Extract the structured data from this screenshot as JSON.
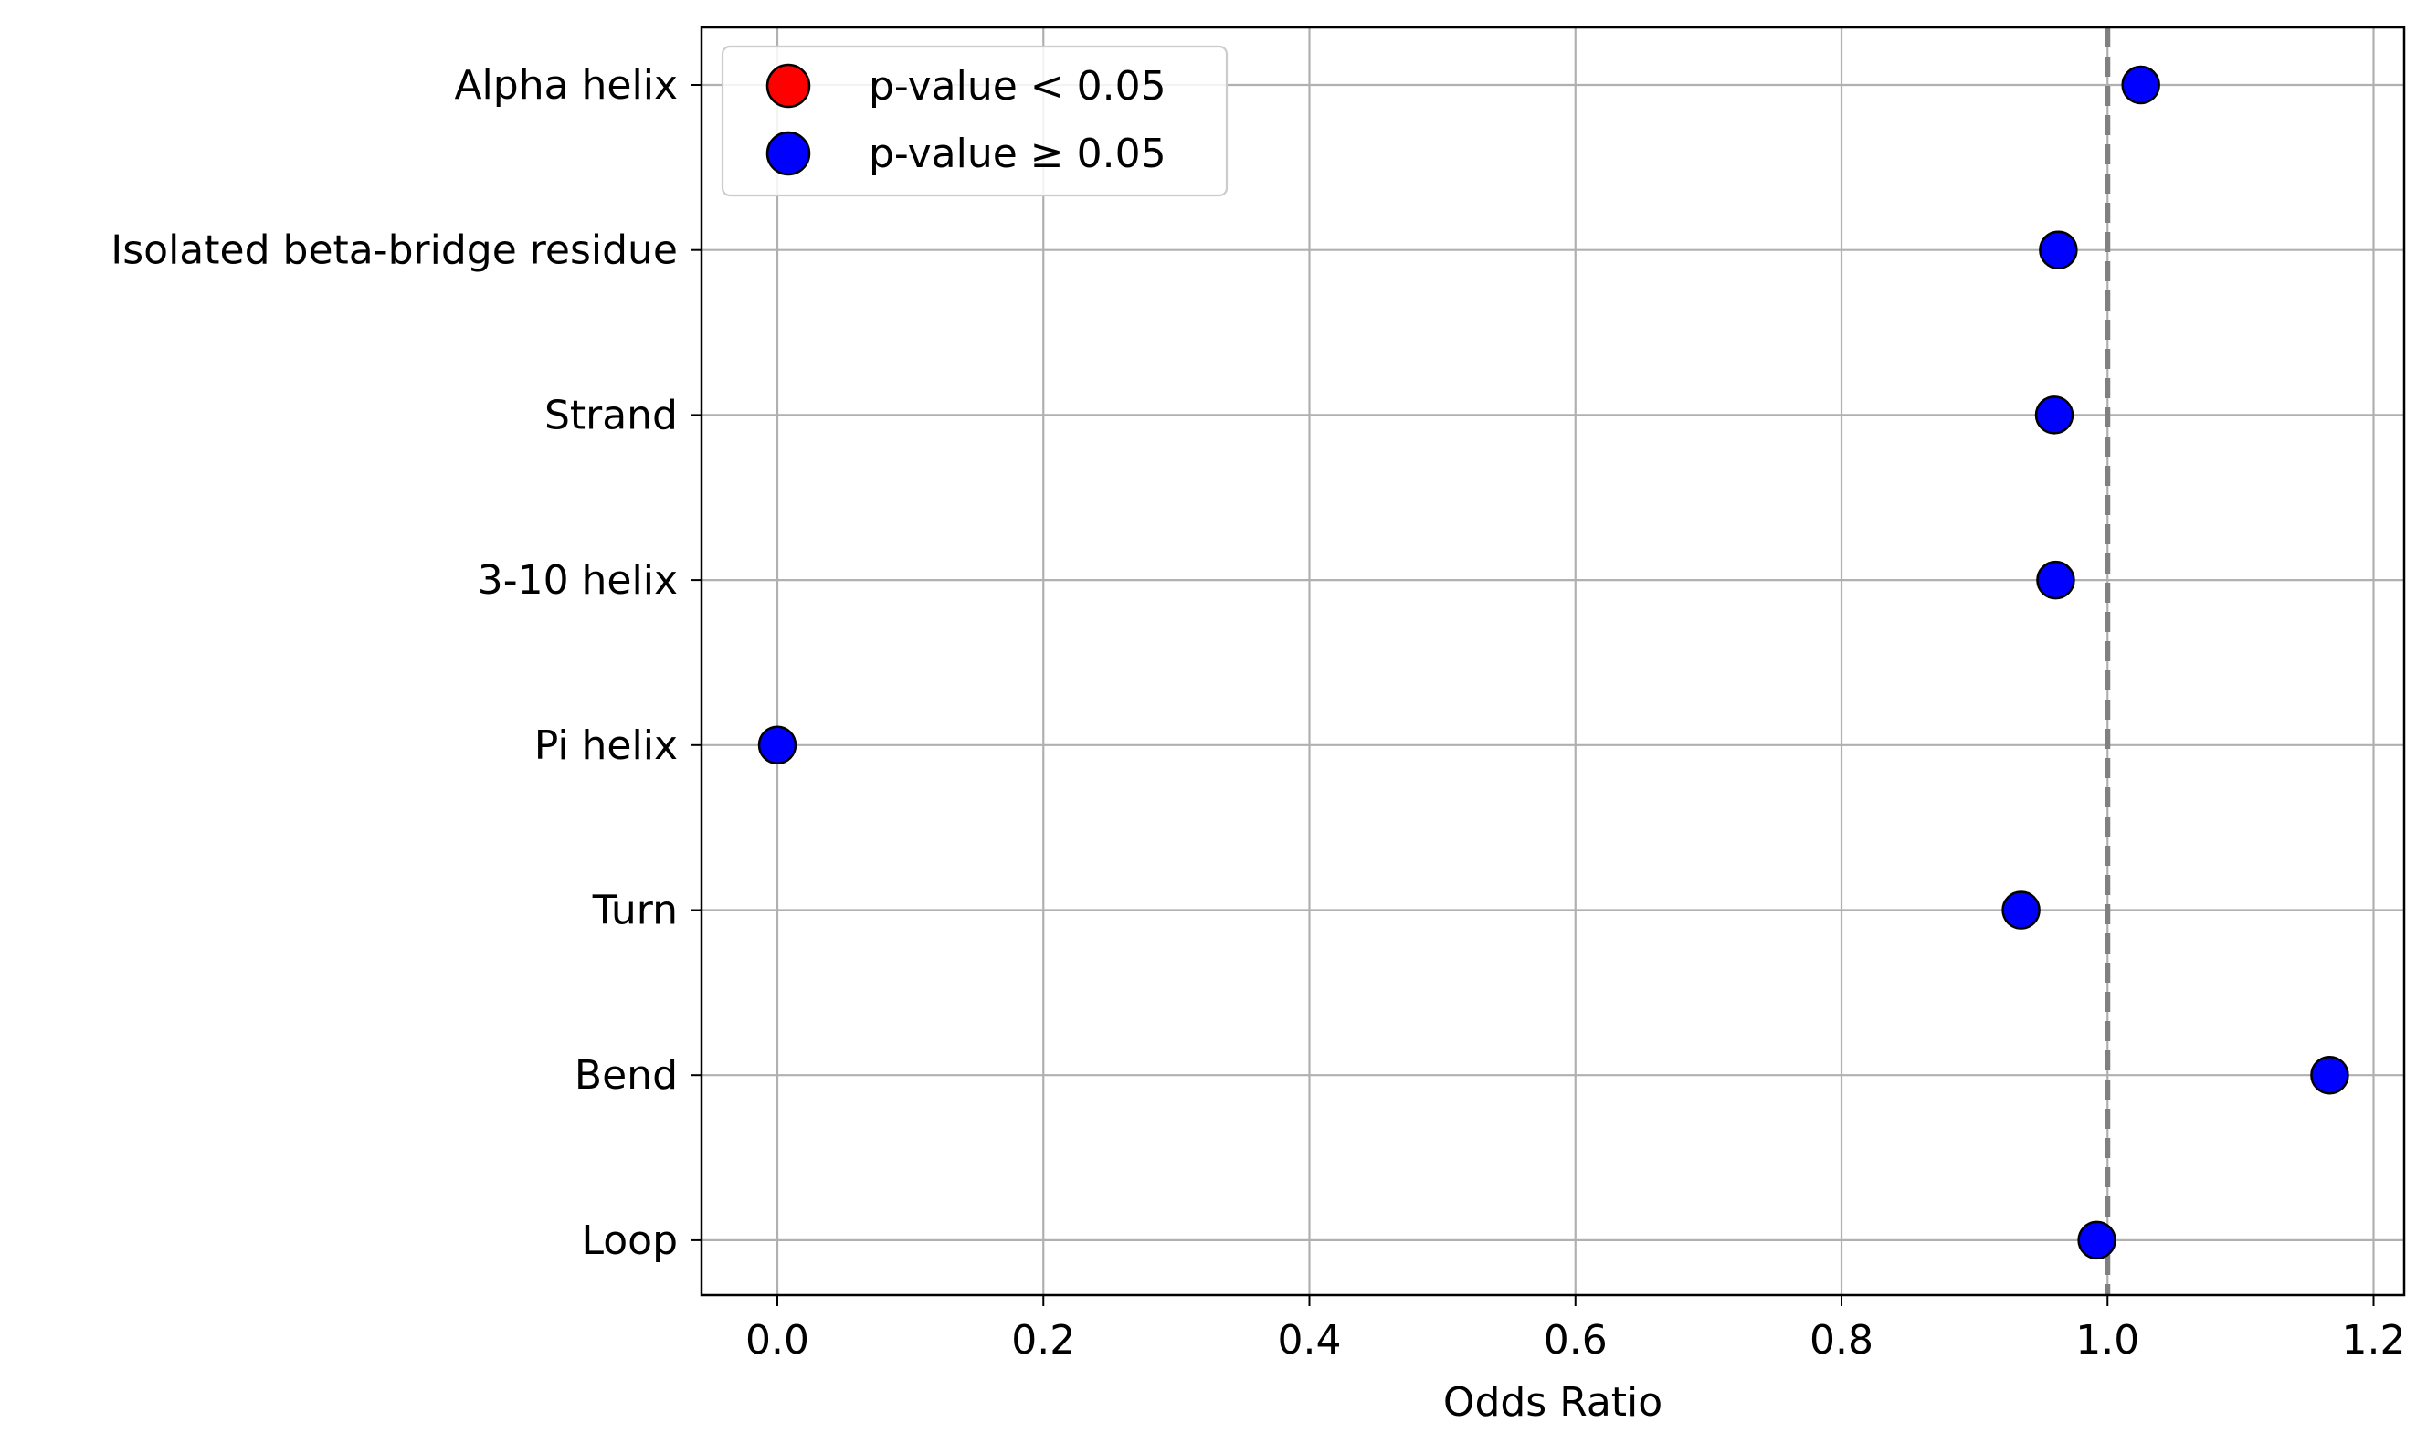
{
  "chart_data": {
    "type": "scatter",
    "title": "",
    "xlabel": "Odds Ratio",
    "ylabel": "",
    "xlim": [
      -0.057,
      1.223
    ],
    "xticks": [
      0.0,
      0.2,
      0.4,
      0.6,
      0.8,
      1.0,
      1.2
    ],
    "xtick_labels": [
      "0.0",
      "0.2",
      "0.4",
      "0.6",
      "0.8",
      "1.0",
      "1.2"
    ],
    "categories": [
      "Alpha helix",
      "Isolated beta-bridge residue",
      "Strand",
      "3-10 helix",
      "Pi helix",
      "Turn",
      "Bend",
      "Loop"
    ],
    "values": [
      1.025,
      0.963,
      0.96,
      0.961,
      0.0,
      0.935,
      1.167,
      0.992
    ],
    "point_colors": [
      "#0000ff",
      "#0000ff",
      "#0000ff",
      "#0000ff",
      "#0000ff",
      "#0000ff",
      "#0000ff",
      "#0000ff"
    ],
    "reference_line": {
      "x": 1.0,
      "style": "dashed",
      "color": "#808080"
    },
    "grid": true,
    "legend": {
      "placement": "top-left",
      "entries": [
        {
          "label": "p-value < 0.05",
          "color": "#ff0000"
        },
        {
          "label": "p-value ≥ 0.05",
          "color": "#0000ff"
        }
      ]
    }
  }
}
